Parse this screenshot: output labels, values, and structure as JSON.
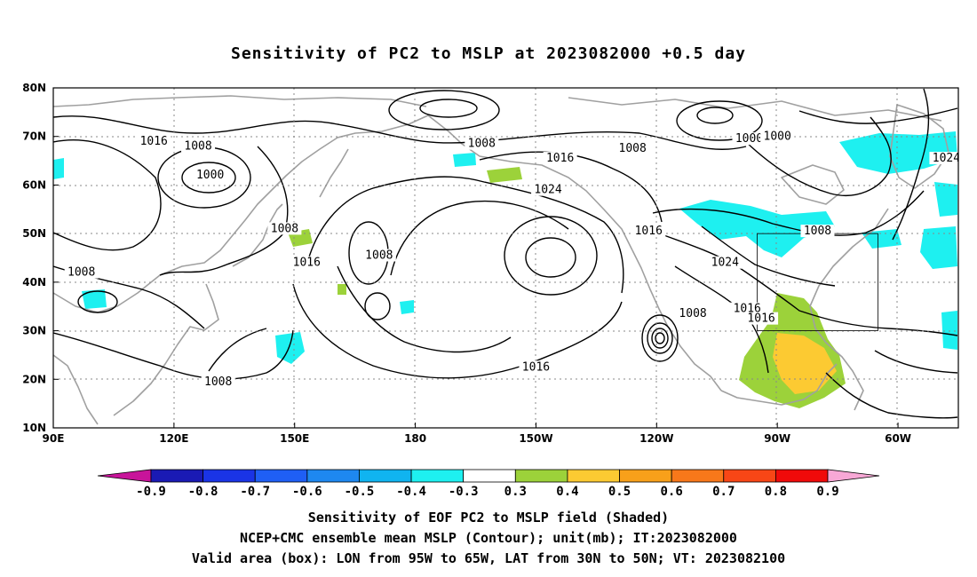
{
  "title": "Sensitivity of PC2 to MSLP at 2023082000 +0.5 day",
  "map": {
    "lon_labels": [
      "90E",
      "120E",
      "150E",
      "180",
      "150W",
      "120W",
      "90W",
      "60W"
    ],
    "lat_labels": [
      "80N",
      "70N",
      "60N",
      "50N",
      "40N",
      "30N",
      "20N",
      "10N"
    ],
    "contour_labels": [
      {
        "text": "1016",
        "lon": 115,
        "lat": 68.5
      },
      {
        "text": "1008",
        "lon": 126,
        "lat": 67.5
      },
      {
        "text": "1000",
        "lon": 129,
        "lat": 61.5
      },
      {
        "text": "1008",
        "lon": 196.5,
        "lat": 68
      },
      {
        "text": "1016",
        "lon": 216,
        "lat": 65
      },
      {
        "text": "1024",
        "lon": 213,
        "lat": 58.5
      },
      {
        "text": "1008",
        "lon": 234,
        "lat": 67
      },
      {
        "text": "1000",
        "lon": 263,
        "lat": 69
      },
      {
        "text": "1000",
        "lon": 270,
        "lat": 69.5
      },
      {
        "text": "1024",
        "lon": 312,
        "lat": 65
      },
      {
        "text": "1008",
        "lon": 147.5,
        "lat": 50.5
      },
      {
        "text": "1016",
        "lon": 153,
        "lat": 43.5
      },
      {
        "text": "1008",
        "lon": 171,
        "lat": 45
      },
      {
        "text": "1016",
        "lon": 238,
        "lat": 50
      },
      {
        "text": "1024",
        "lon": 257,
        "lat": 43.5
      },
      {
        "text": "1008",
        "lon": 280,
        "lat": 50
      },
      {
        "text": "1008",
        "lon": 97,
        "lat": 41.5
      },
      {
        "text": "1008",
        "lon": 249,
        "lat": 33
      },
      {
        "text": "1016",
        "lon": 262.5,
        "lat": 34
      },
      {
        "text": "1016",
        "lon": 266,
        "lat": 32
      },
      {
        "text": "1016",
        "lon": 210,
        "lat": 22
      },
      {
        "text": "1008",
        "lon": 131,
        "lat": 19
      }
    ],
    "valid_box": {
      "lon": [
        265,
        295
      ],
      "lat": [
        30,
        50
      ]
    }
  },
  "colorbar": {
    "labels": [
      "-0.9",
      "-0.8",
      "-0.7",
      "-0.6",
      "-0.5",
      "-0.4",
      "-0.3",
      "0.3",
      "0.4",
      "0.5",
      "0.6",
      "0.7",
      "0.8",
      "0.9"
    ],
    "colors": [
      "#1a1ab4",
      "#1a34e6",
      "#1f5ff5",
      "#1e88f0",
      "#10b4f0",
      "#1ef0f0",
      "#ffffff",
      "#9cd23a",
      "#fcca32",
      "#f8a01a",
      "#f8781a",
      "#f84616",
      "#f00a0a"
    ],
    "end_low_color": "#c8149a",
    "end_high_color": "#f8a8d6"
  },
  "captions": {
    "line1": "Sensitivity of EOF PC2 to MSLP field (Shaded)",
    "line2": "NCEP+CMC ensemble mean MSLP (Contour); unit(mb); IT:2023082000",
    "line3": "Valid area (box): LON from 95W to 65W, LAT from 30N to 50N; VT: 2023082100"
  }
}
